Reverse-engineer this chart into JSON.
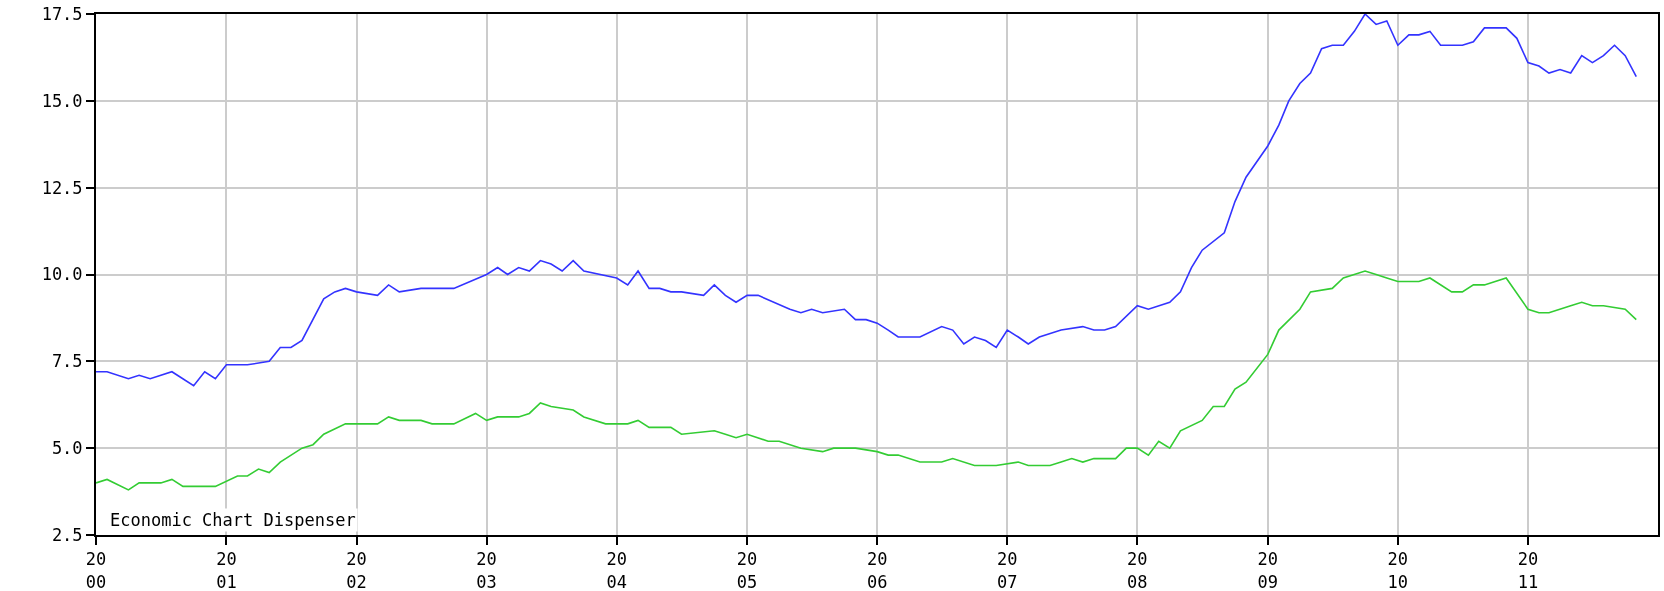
{
  "chart_data": {
    "type": "line",
    "x": [
      "2000-01",
      "2000-02",
      "2000-04",
      "2000-05",
      "2000-06",
      "2000-08",
      "2000-10",
      "2000-11",
      "2000-12",
      "2001-01",
      "2001-03",
      "2001-05",
      "2001-06",
      "2001-07",
      "2001-08",
      "2001-10",
      "2001-11",
      "2001-12",
      "2002-01",
      "2002-03",
      "2002-04",
      "2002-05",
      "2002-07",
      "2002-10",
      "2003-01",
      "2003-02",
      "2003-03",
      "2003-04",
      "2003-05",
      "2003-06",
      "2003-07",
      "2003-08",
      "2003-09",
      "2003-10",
      "2004-01",
      "2004-02",
      "2004-03",
      "2004-04",
      "2004-05",
      "2004-06",
      "2004-07",
      "2004-09",
      "2004-10",
      "2004-11",
      "2004-12",
      "2005-01",
      "2005-02",
      "2005-05",
      "2005-06",
      "2005-07",
      "2005-08",
      "2005-10",
      "2005-11",
      "2005-12",
      "2006-01",
      "2006-02",
      "2006-03",
      "2006-04",
      "2006-05",
      "2006-07",
      "2006-08",
      "2006-09",
      "2006-10",
      "2006-11",
      "2006-12",
      "2007-01",
      "2007-02",
      "2007-03",
      "2007-04",
      "2007-06",
      "2007-08",
      "2007-09",
      "2007-10",
      "2007-11",
      "2008-01",
      "2008-02",
      "2008-04",
      "2008-05",
      "2008-06",
      "2008-07",
      "2008-09",
      "2008-10",
      "2008-11",
      "2009-01",
      "2009-02",
      "2009-03",
      "2009-04",
      "2009-05",
      "2009-06",
      "2009-07",
      "2009-08",
      "2009-09",
      "2009-10",
      "2009-11",
      "2009-12",
      "2010-01",
      "2010-02",
      "2010-03",
      "2010-04",
      "2010-05",
      "2010-07",
      "2010-08",
      "2010-09",
      "2010-11",
      "2010-12",
      "2011-01",
      "2011-02",
      "2011-03",
      "2011-04",
      "2011-05",
      "2011-06",
      "2011-07",
      "2011-08",
      "2011-09",
      "2011-10",
      "2011-11"
    ],
    "series": [
      {
        "color": "#3333ff",
        "values": [
          7.2,
          7.2,
          7.0,
          7.1,
          7.0,
          7.2,
          6.8,
          7.2,
          7.0,
          7.4,
          7.4,
          7.5,
          7.9,
          7.9,
          8.1,
          9.3,
          9.5,
          9.6,
          9.5,
          9.4,
          9.7,
          9.5,
          9.6,
          9.6,
          10.0,
          10.2,
          10.0,
          10.2,
          10.1,
          10.4,
          10.3,
          10.1,
          10.4,
          10.1,
          9.9,
          9.7,
          10.1,
          9.6,
          9.6,
          9.5,
          9.5,
          9.4,
          9.7,
          9.4,
          9.2,
          9.4,
          9.4,
          9.0,
          8.9,
          9.0,
          8.9,
          9.0,
          8.7,
          8.7,
          8.6,
          8.4,
          8.2,
          8.2,
          8.2,
          8.5,
          8.4,
          8.0,
          8.2,
          8.1,
          7.9,
          8.4,
          8.2,
          8.0,
          8.2,
          8.4,
          8.5,
          8.4,
          8.4,
          8.5,
          9.1,
          9.0,
          9.2,
          9.5,
          10.2,
          10.7,
          11.2,
          12.1,
          12.8,
          13.7,
          14.3,
          15.0,
          15.5,
          15.8,
          16.5,
          16.6,
          16.6,
          17.0,
          17.5,
          17.2,
          17.3,
          16.6,
          16.9,
          16.9,
          17.0,
          16.6,
          16.6,
          16.7,
          17.1,
          17.1,
          16.8,
          16.1,
          16.0,
          15.8,
          15.9,
          15.8,
          16.3,
          16.1,
          16.3,
          16.6,
          16.3,
          15.7
        ]
      },
      {
        "color": "#33cc33",
        "x": [
          "2000-01",
          "2000-02",
          "2000-04",
          "2000-05",
          "2000-07",
          "2000-08",
          "2000-09",
          "2000-12",
          "2001-02",
          "2001-03",
          "2001-04",
          "2001-05",
          "2001-06",
          "2001-08",
          "2001-09",
          "2001-10",
          "2001-12",
          "2002-03",
          "2002-04",
          "2002-05",
          "2002-07",
          "2002-08",
          "2002-10",
          "2002-12",
          "2003-01",
          "2003-02",
          "2003-04",
          "2003-05",
          "2003-06",
          "2003-07",
          "2003-09",
          "2003-10",
          "2003-12",
          "2004-02",
          "2004-03",
          "2004-04",
          "2004-06",
          "2004-07",
          "2004-10",
          "2004-11",
          "2004-12",
          "2005-01",
          "2005-03",
          "2005-04",
          "2005-06",
          "2005-08",
          "2005-09",
          "2005-11",
          "2006-01",
          "2006-02",
          "2006-03",
          "2006-05",
          "2006-07",
          "2006-08",
          "2006-10",
          "2006-11",
          "2006-12",
          "2007-02",
          "2007-03",
          "2007-04",
          "2007-05",
          "2007-06",
          "2007-07",
          "2007-08",
          "2007-09",
          "2007-11",
          "2007-12",
          "2008-01",
          "2008-02",
          "2008-03",
          "2008-04",
          "2008-05",
          "2008-07",
          "2008-08",
          "2008-09",
          "2008-10",
          "2008-11",
          "2009-01",
          "2009-02",
          "2009-04",
          "2009-05",
          "2009-07",
          "2009-08",
          "2009-10",
          "2009-11",
          "2009-12",
          "2010-01",
          "2010-03",
          "2010-04",
          "2010-06",
          "2010-07",
          "2010-08",
          "2010-09",
          "2010-11",
          "2011-01",
          "2011-02",
          "2011-03",
          "2011-05",
          "2011-06",
          "2011-07",
          "2011-08",
          "2011-10",
          "2011-11"
        ],
        "values": [
          4.0,
          4.1,
          3.8,
          4.0,
          4.0,
          4.1,
          3.9,
          3.9,
          4.2,
          4.2,
          4.4,
          4.3,
          4.6,
          5.0,
          5.1,
          5.4,
          5.7,
          5.7,
          5.9,
          5.8,
          5.8,
          5.7,
          5.7,
          6.0,
          5.8,
          5.9,
          5.9,
          6.0,
          6.3,
          6.2,
          6.1,
          5.9,
          5.7,
          5.7,
          5.8,
          5.6,
          5.6,
          5.4,
          5.5,
          5.4,
          5.3,
          5.4,
          5.2,
          5.2,
          5.0,
          4.9,
          5.0,
          5.0,
          4.9,
          4.8,
          4.8,
          4.6,
          4.6,
          4.7,
          4.5,
          4.5,
          4.5,
          4.6,
          4.5,
          4.5,
          4.5,
          4.6,
          4.7,
          4.6,
          4.7,
          4.7,
          5.0,
          5.0,
          4.8,
          5.2,
          5.0,
          5.5,
          5.8,
          6.2,
          6.2,
          6.7,
          6.9,
          7.7,
          8.4,
          9.0,
          9.5,
          9.6,
          9.9,
          10.1,
          10.0,
          9.9,
          9.8,
          9.8,
          9.9,
          9.5,
          9.5,
          9.7,
          9.7,
          9.9,
          9.0,
          8.9,
          8.9,
          9.1,
          9.2,
          9.1,
          9.1,
          9.0,
          8.7
        ]
      }
    ],
    "xlim": [
      "2000-01-01",
      "2012-01-01"
    ],
    "xticks": [
      {
        "value": "2000-01-01",
        "label": "20\n00"
      },
      {
        "value": "2001-01-01",
        "label": "20\n01"
      },
      {
        "value": "2002-01-01",
        "label": "20\n02"
      },
      {
        "value": "2003-01-01",
        "label": "20\n03"
      },
      {
        "value": "2004-01-01",
        "label": "20\n04"
      },
      {
        "value": "2005-01-01",
        "label": "20\n05"
      },
      {
        "value": "2006-01-01",
        "label": "20\n06"
      },
      {
        "value": "2007-01-01",
        "label": "20\n07"
      },
      {
        "value": "2008-01-01",
        "label": "20\n08"
      },
      {
        "value": "2009-01-01",
        "label": "20\n09"
      },
      {
        "value": "2010-01-01",
        "label": "20\n10"
      },
      {
        "value": "2011-01-01",
        "label": "20\n11"
      }
    ],
    "ylim": [
      2.5,
      17.5
    ],
    "yticks": [
      2.5,
      {
        "value": 5,
        "label": "5.0"
      },
      7.5,
      {
        "value": 10,
        "label": "10.0"
      },
      12.5,
      {
        "value": 15,
        "label": "15.0"
      },
      17.5
    ],
    "grid": true,
    "annotations": [
      "Economic Chart Dispenser"
    ]
  }
}
